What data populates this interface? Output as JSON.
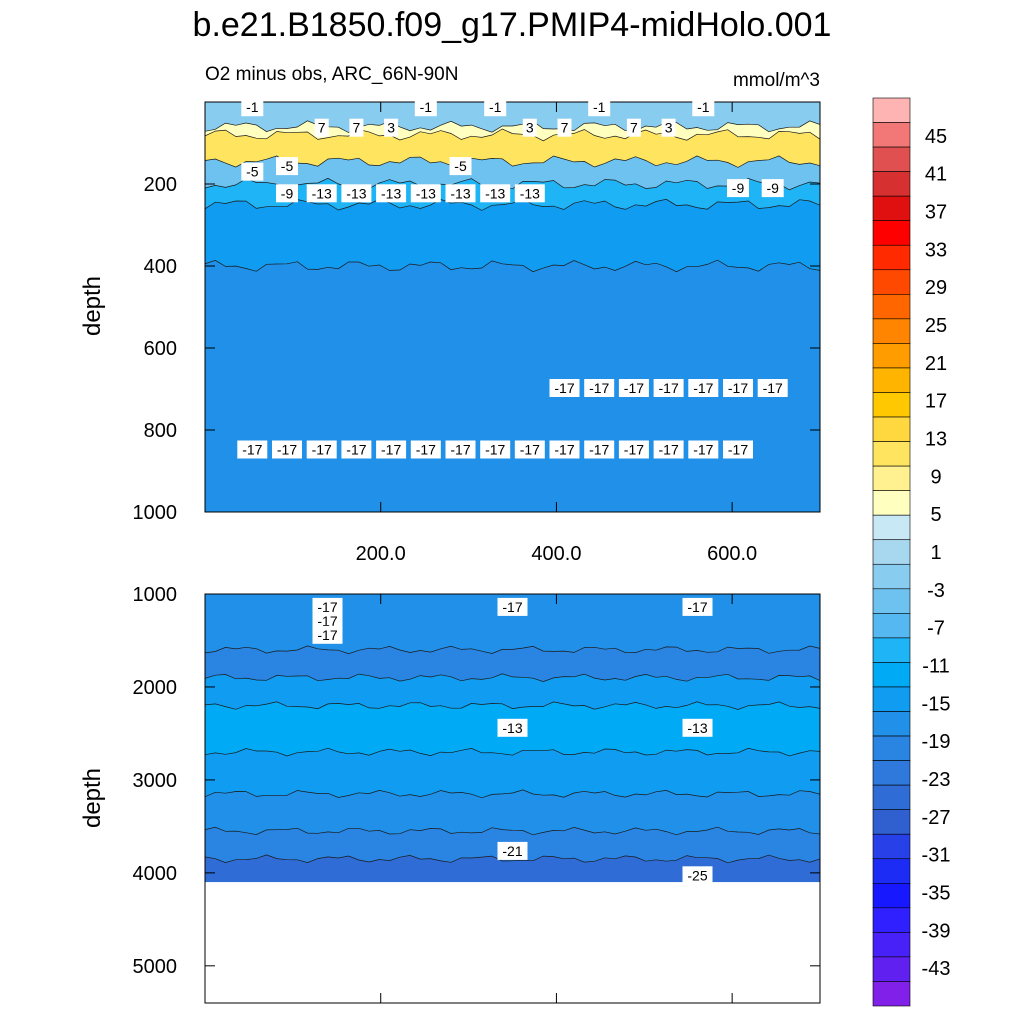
{
  "chart_data": {
    "type": "heatmap",
    "title": "b.e21.B1850.f09_g17.PMIP4-midHolo.001",
    "subtitle_left": "O2 minus obs, ARC_66N-90N",
    "subtitle_right": "mmol/m^3",
    "panels": [
      {
        "name": "upper",
        "ylabel": "depth",
        "ylim": [
          1000,
          0
        ],
        "ytick_labels": [
          "200",
          "400",
          "600",
          "800",
          "1000"
        ],
        "xlim": [
          0,
          700
        ],
        "xtick_labels": [
          "200.0",
          "400.0",
          "600.0"
        ],
        "layers": [
          {
            "from": 0,
            "to": 60,
            "value": -3
          },
          {
            "from": 60,
            "to": 80,
            "value": 5
          },
          {
            "from": 80,
            "to": 145,
            "value": 9
          },
          {
            "from": 145,
            "to": 200,
            "value": -5
          },
          {
            "from": 200,
            "to": 250,
            "value": -11
          },
          {
            "from": 250,
            "to": 400,
            "value": -15
          },
          {
            "from": 400,
            "to": 1000,
            "value": -17
          }
        ],
        "contour_labels": [
          "-1",
          "-5",
          "7",
          "7",
          "3",
          "-1",
          "-5",
          "-1",
          "3",
          "7",
          "-1",
          "7",
          "3",
          "-1",
          "-9",
          "-9",
          "-5",
          "-9",
          "-13",
          "-13",
          "-13",
          "-13",
          "-13",
          "-13",
          "-13",
          "-17",
          "-17",
          "-17",
          "-17",
          "-17",
          "-17",
          "-17",
          "-17",
          "-17",
          "-17",
          "-17",
          "-17",
          "-17",
          "-17",
          "-17",
          "-17",
          "-17",
          "-17",
          "-17",
          "-17",
          "-17",
          "-17"
        ]
      },
      {
        "name": "lower",
        "ylabel": "depth",
        "ylim": [
          5400,
          1000
        ],
        "ytick_labels": [
          "1000",
          "2000",
          "3000",
          "4000",
          "5000"
        ],
        "xlim": [
          0,
          700
        ],
        "layers": [
          {
            "from": 1000,
            "to": 1600,
            "value": -17
          },
          {
            "from": 1600,
            "to": 1900,
            "value": -19
          },
          {
            "from": 1900,
            "to": 2200,
            "value": -15
          },
          {
            "from": 2200,
            "to": 2700,
            "value": -13
          },
          {
            "from": 2700,
            "to": 3150,
            "value": -15
          },
          {
            "from": 3150,
            "to": 3550,
            "value": -17
          },
          {
            "from": 3550,
            "to": 3850,
            "value": -21
          },
          {
            "from": 3850,
            "to": 4100,
            "value": -25
          }
        ],
        "bottom_depth": 4100,
        "contour_labels": [
          "-17",
          "-17",
          "-17",
          "-17",
          "-13",
          "-13",
          "-17",
          "-21",
          "-25"
        ]
      }
    ],
    "colorbar": {
      "labels": [
        "45",
        "41",
        "37",
        "33",
        "29",
        "25",
        "21",
        "17",
        "13",
        "9",
        "5",
        "1",
        "-3",
        "-7",
        "-11",
        "-15",
        "-19",
        "-23",
        "-27",
        "-31",
        "-35",
        "-39",
        "-43"
      ],
      "colors": [
        "#ffb4b4",
        "#f27878",
        "#e05050",
        "#d63030",
        "#e01010",
        "#ff0000",
        "#ff2a00",
        "#ff4800",
        "#ff6600",
        "#ff8400",
        "#ff9c00",
        "#ffb400",
        "#ffc800",
        "#ffd840",
        "#ffe460",
        "#fff090",
        "#ffffc0",
        "#c8e8f5",
        "#a8d8f0",
        "#88ccf0",
        "#6ec2f0",
        "#56b8f0",
        "#1eb4f5",
        "#00aaf5",
        "#109cf0",
        "#2090e8",
        "#2a84e2",
        "#2f78dc",
        "#2f6cd6",
        "#3060d0",
        "#2840e8",
        "#1c2cf4",
        "#1818ff",
        "#3020ff",
        "#4820f8",
        "#6020f0",
        "#8020e8"
      ]
    }
  }
}
